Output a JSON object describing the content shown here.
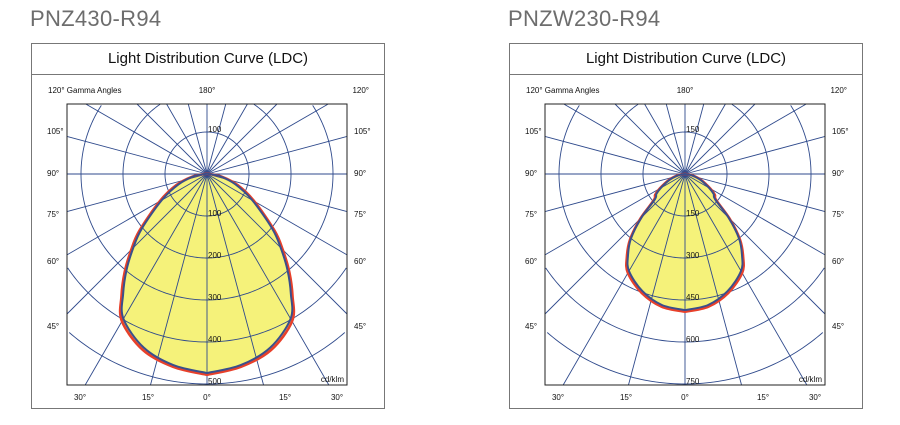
{
  "chart_data": [
    {
      "type": "line",
      "polar": true,
      "product": "PNZ430-R94",
      "title": "Light Distribution Curve (LDC)",
      "angle_axis_label": "120° Gamma Angles",
      "unit": "cd/klm",
      "top_labels": [
        "180°",
        "120°"
      ],
      "side_labels": [
        "105°",
        "90°",
        "75°",
        "60°",
        "45°"
      ],
      "bottom_labels": [
        "30°",
        "15°",
        "0°",
        "15°",
        "30°"
      ],
      "radial_ticks_top": [
        "100"
      ],
      "radial_ticks": [
        100,
        200,
        300,
        400,
        500
      ],
      "rmax": 500,
      "gamma": [
        0,
        10,
        20,
        30,
        35,
        40,
        45,
        50,
        60,
        70,
        80,
        90
      ],
      "series": [
        {
          "color": "#e8402a",
          "values": [
            478,
            466,
            446,
            405,
            355,
            305,
            255,
            210,
            130,
            78,
            35,
            5
          ]
        },
        {
          "color": "#3a4f8c",
          "values": [
            474,
            462,
            440,
            398,
            348,
            298,
            248,
            203,
            124,
            72,
            32,
            4
          ]
        }
      ],
      "fill": "#f5f27a",
      "grid_color": "#2f4a8c"
    },
    {
      "type": "line",
      "polar": true,
      "product": "PNZW230-R94",
      "title": "Light Distribution Curve (LDC)",
      "angle_axis_label": "120° Gamma Angles",
      "unit": "cd/klm",
      "top_labels": [
        "180°",
        "120°"
      ],
      "side_labels": [
        "105°",
        "90°",
        "75°",
        "60°",
        "45°"
      ],
      "bottom_labels": [
        "30°",
        "15°",
        "0°",
        "15°",
        "30°"
      ],
      "radial_ticks_top": [
        "150"
      ],
      "radial_ticks": [
        150,
        300,
        450,
        600,
        750
      ],
      "rmax": 750,
      "gamma": [
        0,
        10,
        20,
        30,
        35,
        40,
        45,
        50,
        55,
        60,
        70,
        80,
        90
      ],
      "series": [
        {
          "color": "#e8402a",
          "values": [
            492,
            481,
            452,
            408,
            362,
            305,
            225,
            145,
            130,
            105,
            60,
            25,
            2
          ]
        },
        {
          "color": "#3a4f8c",
          "values": [
            486,
            475,
            445,
            400,
            355,
            300,
            220,
            140,
            125,
            100,
            56,
            22,
            0
          ]
        }
      ],
      "fill": "#f5f27a",
      "grid_color": "#2f4a8c"
    }
  ]
}
